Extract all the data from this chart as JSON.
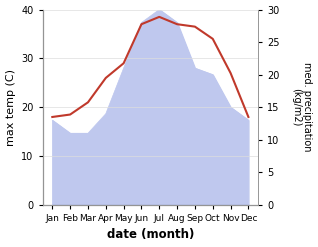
{
  "months": [
    "Jan",
    "Feb",
    "Mar",
    "Apr",
    "May",
    "Jun",
    "Jul",
    "Aug",
    "Sep",
    "Oct",
    "Nov",
    "Dec"
  ],
  "max_temp": [
    18,
    18.5,
    21,
    26,
    29,
    37,
    38.5,
    37,
    36.5,
    34,
    27,
    18
  ],
  "precipitation": [
    13,
    11,
    11,
    14,
    21,
    28,
    30,
    28,
    21,
    20,
    15,
    13
  ],
  "temp_color": "#c0392b",
  "precip_fill_color": "#bfc8ee",
  "ylabel_left": "max temp (C)",
  "ylabel_right": "med. precipitation\n(kg/m2)",
  "xlabel": "date (month)",
  "ylim_left": [
    0,
    40
  ],
  "ylim_right": [
    0,
    30
  ],
  "yticks_left": [
    0,
    10,
    20,
    30,
    40
  ],
  "yticks_right": [
    0,
    5,
    10,
    15,
    20,
    25,
    30
  ],
  "background_color": "#ffffff"
}
